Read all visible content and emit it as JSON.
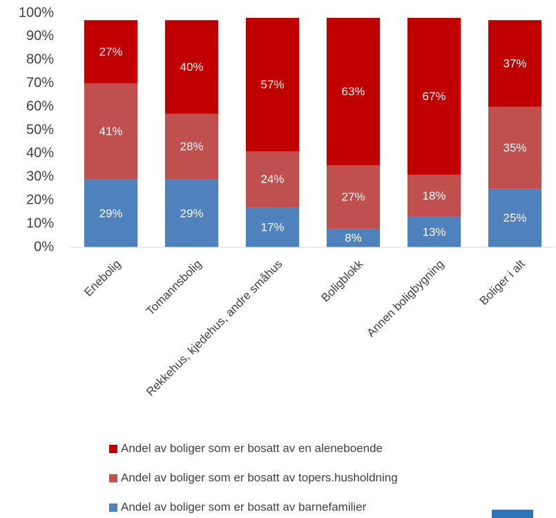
{
  "chart_data": {
    "type": "stacked-bar",
    "categories": [
      "Enebolig",
      "Tomannsbolig",
      "Rekkehus, kjedehus, andre småhus",
      "Boligblokk",
      "Annen boligbygning",
      "Boliger i alt"
    ],
    "series": [
      {
        "name": "Andel av boliger som er bosatt av barnefamilier",
        "color": "#4f81bd",
        "values": [
          29,
          29,
          17,
          8,
          13,
          25
        ],
        "value_labels": [
          "29%",
          "29%",
          "17%",
          "8%",
          "13%",
          "25%"
        ]
      },
      {
        "name": "Andel av boliger som er bosatt av topers.husholdning",
        "color": "#c0504d",
        "values": [
          41,
          28,
          24,
          27,
          18,
          35
        ],
        "value_labels": [
          "41%",
          "28%",
          "24%",
          "27%",
          "18%",
          "35%"
        ]
      },
      {
        "name": "Andel av boliger som er bosatt av en aleneboende",
        "color": "#c00000",
        "values": [
          27,
          40,
          57,
          63,
          67,
          37
        ],
        "value_labels": [
          "27%",
          "40%",
          "57%",
          "63%",
          "67%",
          "37%"
        ]
      }
    ],
    "ylim": [
      0,
      100
    ],
    "yticks": [
      {
        "value": 0,
        "label": "0%"
      },
      {
        "value": 10,
        "label": "10%"
      },
      {
        "value": 20,
        "label": "20%"
      },
      {
        "value": 30,
        "label": "30%"
      },
      {
        "value": 40,
        "label": "40%"
      },
      {
        "value": 50,
        "label": "50%"
      },
      {
        "value": 60,
        "label": "60%"
      },
      {
        "value": 70,
        "label": "70%"
      },
      {
        "value": 80,
        "label": "80%"
      },
      {
        "value": 90,
        "label": "90%"
      },
      {
        "value": 100,
        "label": "100%"
      }
    ],
    "grid": false
  }
}
